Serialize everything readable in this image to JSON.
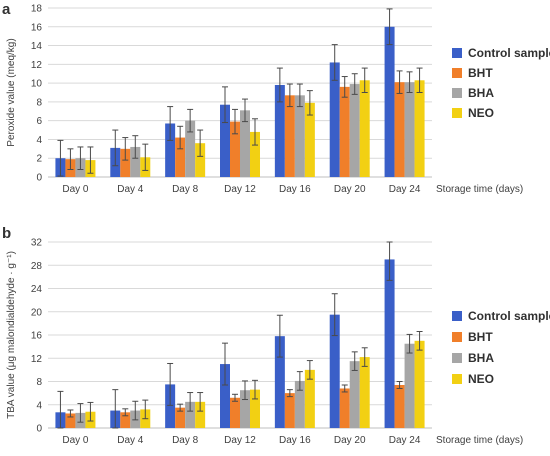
{
  "series_colors": {
    "Control sample": "#3a5fc8",
    "BHT": "#f07f2a",
    "BHA": "#a6a6a6",
    "NEO": "#f2d013"
  },
  "chart_data": [
    {
      "panel_label": "a",
      "type": "bar",
      "categories": [
        "Day 0",
        "Day 4",
        "Day 8",
        "Day 12",
        "Day 16",
        "Day 20",
        "Day 24"
      ],
      "ylabel": "Peroxide value (meq/kg)",
      "xlabel": "Storage time (days)",
      "ylim": [
        0,
        18
      ],
      "yticks": [
        0,
        2,
        4,
        6,
        8,
        10,
        12,
        14,
        16,
        18
      ],
      "grid": true,
      "legend_position": "right",
      "series": [
        {
          "name": "Control sample",
          "values": [
            2.0,
            3.1,
            5.7,
            7.7,
            9.8,
            12.2,
            16.0
          ],
          "errors": [
            1.9,
            1.9,
            1.8,
            1.9,
            1.8,
            1.9,
            1.9
          ]
        },
        {
          "name": "BHT",
          "values": [
            1.9,
            3.0,
            4.2,
            5.9,
            8.7,
            9.6,
            10.1
          ],
          "errors": [
            1.1,
            1.2,
            1.2,
            1.3,
            1.2,
            1.1,
            1.2
          ]
        },
        {
          "name": "BHA",
          "values": [
            2.0,
            3.2,
            6.0,
            7.1,
            8.7,
            9.9,
            10.1
          ],
          "errors": [
            1.2,
            1.2,
            1.2,
            1.2,
            1.2,
            1.1,
            1.1
          ]
        },
        {
          "name": "NEO",
          "values": [
            1.8,
            2.1,
            3.6,
            4.8,
            7.9,
            10.3,
            10.3
          ],
          "errors": [
            1.4,
            1.4,
            1.4,
            1.4,
            1.3,
            1.3,
            1.3
          ]
        }
      ]
    },
    {
      "panel_label": "b",
      "type": "bar",
      "categories": [
        "Day 0",
        "Day 4",
        "Day 8",
        "Day 12",
        "Day 16",
        "Day 20",
        "Day 24"
      ],
      "ylabel": "TBA value (μg malondialdehyde · g⁻¹)",
      "xlabel": "Storage time (days)",
      "ylim": [
        0,
        32
      ],
      "yticks": [
        0,
        4,
        8,
        12,
        16,
        20,
        24,
        28,
        32
      ],
      "grid": true,
      "legend_position": "right",
      "series": [
        {
          "name": "Control sample",
          "values": [
            2.7,
            3.0,
            7.5,
            11.0,
            15.8,
            19.5,
            29.0
          ],
          "errors": [
            3.6,
            3.6,
            3.6,
            3.6,
            3.6,
            3.6,
            3.6
          ]
        },
        {
          "name": "BHT",
          "values": [
            2.5,
            2.7,
            3.5,
            5.2,
            6.0,
            6.8,
            7.4
          ],
          "errors": [
            0.6,
            0.6,
            0.6,
            0.6,
            0.6,
            0.6,
            0.6
          ]
        },
        {
          "name": "BHA",
          "values": [
            2.6,
            3.0,
            4.5,
            6.5,
            8.1,
            11.5,
            14.5
          ],
          "errors": [
            1.6,
            1.6,
            1.6,
            1.6,
            1.6,
            1.6,
            1.6
          ]
        },
        {
          "name": "NEO",
          "values": [
            2.8,
            3.2,
            4.5,
            6.6,
            10.0,
            12.2,
            15.0
          ],
          "errors": [
            1.6,
            1.6,
            1.6,
            1.6,
            1.6,
            1.6,
            1.6
          ]
        }
      ]
    }
  ]
}
